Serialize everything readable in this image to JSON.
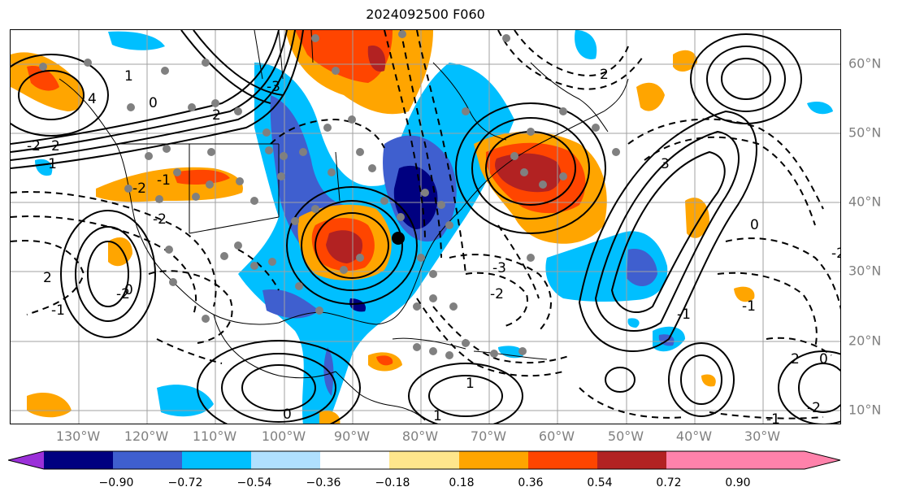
{
  "title": "2024092500 F060",
  "map": {
    "lon_range": [
      -138,
      16
    ],
    "lat_range": [
      8,
      65
    ],
    "lon_labels": [
      "130°W",
      "120°W",
      "110°W",
      "100°W",
      "90°W",
      "80°W",
      "70°W",
      "60°W",
      "50°W",
      "40°W",
      "30°W"
    ],
    "lat_labels": [
      "60°N",
      "50°N",
      "40°N",
      "30°N",
      "20°N",
      "10°N"
    ],
    "contour_labels": [
      "-2",
      "2",
      "1",
      "4",
      "0",
      "-1",
      "2",
      "-3",
      "-2",
      "2",
      "0",
      "-1",
      "1",
      "0",
      "-2",
      "1",
      "-3",
      "-2",
      "3",
      "-1",
      "2",
      "-2",
      "-1",
      "1",
      "0",
      "-2",
      "-1",
      "2",
      "-1",
      "0",
      "-2"
    ],
    "colors": {
      "grid": "#a0a0a0",
      "coast": "#000000",
      "marker": "#808080",
      "center": "#000000"
    }
  },
  "colorbar": {
    "tick_labels": [
      "−0.90",
      "−0.72",
      "−0.54",
      "−0.36",
      "−0.18",
      "0.18",
      "0.36",
      "0.54",
      "0.72",
      "0.90"
    ],
    "colors": [
      "#9b30d9",
      "#000080",
      "#3f5fcf",
      "#00bfff",
      "#b0e0ff",
      "#ffffff",
      "#ffe68c",
      "#ffa500",
      "#ff4500",
      "#b22222",
      "#ff82ab"
    ]
  }
}
